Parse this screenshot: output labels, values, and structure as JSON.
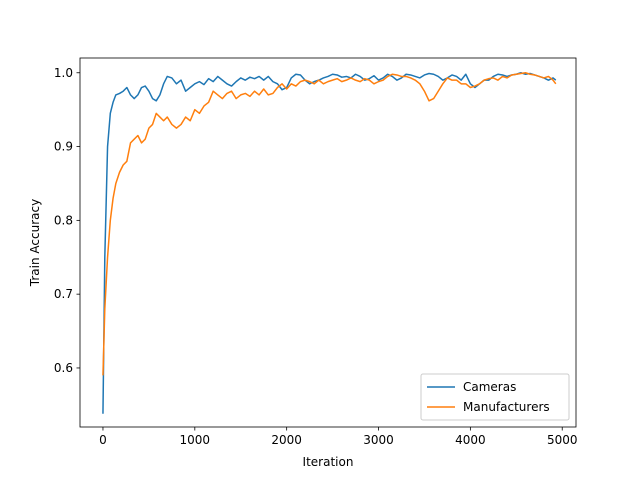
{
  "chart_data": {
    "type": "line",
    "title": "",
    "xlabel": "Iteration",
    "ylabel": "Train Accuracy",
    "xlim": [
      -250,
      5150
    ],
    "ylim": [
      0.52,
      1.02
    ],
    "xticks": [
      0,
      1000,
      2000,
      3000,
      4000,
      5000
    ],
    "xtick_labels": [
      "0",
      "1000",
      "2000",
      "3000",
      "4000",
      "5000"
    ],
    "yticks": [
      0.6,
      0.7,
      0.8,
      0.9,
      1.0
    ],
    "ytick_labels": [
      "0.6",
      "0.7",
      "0.8",
      "0.9",
      "1.0"
    ],
    "grid": false,
    "legend_position": "lower-right",
    "series": [
      {
        "name": "Cameras",
        "color": "#1f77b4",
        "x": [
          0,
          20,
          50,
          80,
          110,
          140,
          180,
          220,
          260,
          300,
          340,
          380,
          420,
          460,
          500,
          540,
          580,
          620,
          660,
          700,
          750,
          800,
          850,
          900,
          950,
          1000,
          1050,
          1100,
          1150,
          1200,
          1250,
          1300,
          1350,
          1400,
          1450,
          1500,
          1550,
          1600,
          1650,
          1700,
          1750,
          1800,
          1850,
          1900,
          1950,
          2000,
          2050,
          2100,
          2150,
          2200,
          2250,
          2300,
          2350,
          2400,
          2450,
          2500,
          2550,
          2600,
          2650,
          2700,
          2750,
          2800,
          2850,
          2900,
          2950,
          3000,
          3050,
          3100,
          3150,
          3200,
          3250,
          3300,
          3350,
          3400,
          3450,
          3500,
          3550,
          3600,
          3650,
          3700,
          3750,
          3800,
          3850,
          3900,
          3950,
          4000,
          4050,
          4100,
          4150,
          4200,
          4250,
          4300,
          4350,
          4400,
          4450,
          4500,
          4550,
          4600,
          4650,
          4700,
          4750,
          4800,
          4850,
          4900,
          4930
        ],
        "values": [
          0.538,
          0.75,
          0.9,
          0.945,
          0.96,
          0.97,
          0.972,
          0.975,
          0.98,
          0.97,
          0.965,
          0.97,
          0.98,
          0.982,
          0.975,
          0.965,
          0.962,
          0.97,
          0.985,
          0.995,
          0.993,
          0.985,
          0.99,
          0.975,
          0.98,
          0.985,
          0.988,
          0.984,
          0.992,
          0.988,
          0.995,
          0.99,
          0.985,
          0.982,
          0.988,
          0.993,
          0.99,
          0.994,
          0.992,
          0.995,
          0.99,
          0.995,
          0.988,
          0.985,
          0.977,
          0.98,
          0.993,
          0.998,
          0.997,
          0.99,
          0.985,
          0.988,
          0.99,
          0.993,
          0.995,
          0.998,
          0.997,
          0.994,
          0.995,
          0.993,
          0.998,
          0.995,
          0.99,
          0.992,
          0.996,
          0.99,
          0.993,
          0.998,
          0.995,
          0.99,
          0.993,
          0.998,
          0.997,
          0.995,
          0.993,
          0.997,
          0.999,
          0.998,
          0.995,
          0.99,
          0.993,
          0.997,
          0.995,
          0.99,
          0.998,
          0.985,
          0.98,
          0.985,
          0.99,
          0.99,
          0.995,
          0.998,
          0.997,
          0.995,
          0.997,
          0.998,
          1.0,
          0.998,
          0.999,
          0.997,
          0.995,
          0.993,
          0.99,
          0.993,
          0.99
        ]
      },
      {
        "name": "Manufacturers",
        "color": "#ff7f0e",
        "x": [
          0,
          20,
          50,
          80,
          110,
          140,
          180,
          220,
          260,
          300,
          340,
          380,
          420,
          460,
          500,
          540,
          580,
          620,
          660,
          700,
          750,
          800,
          850,
          900,
          950,
          1000,
          1050,
          1100,
          1150,
          1200,
          1250,
          1300,
          1350,
          1400,
          1450,
          1500,
          1550,
          1600,
          1650,
          1700,
          1750,
          1800,
          1850,
          1900,
          1950,
          2000,
          2050,
          2100,
          2150,
          2200,
          2250,
          2300,
          2350,
          2400,
          2450,
          2500,
          2550,
          2600,
          2650,
          2700,
          2750,
          2800,
          2850,
          2900,
          2950,
          3000,
          3050,
          3100,
          3150,
          3200,
          3250,
          3300,
          3350,
          3400,
          3450,
          3500,
          3550,
          3600,
          3650,
          3700,
          3750,
          3800,
          3850,
          3900,
          3950,
          4000,
          4050,
          4100,
          4150,
          4200,
          4250,
          4300,
          4350,
          4400,
          4450,
          4500,
          4550,
          4600,
          4650,
          4700,
          4750,
          4800,
          4850,
          4900,
          4930
        ],
        "values": [
          0.59,
          0.68,
          0.75,
          0.8,
          0.83,
          0.85,
          0.865,
          0.875,
          0.88,
          0.905,
          0.91,
          0.915,
          0.905,
          0.91,
          0.925,
          0.93,
          0.945,
          0.94,
          0.935,
          0.94,
          0.93,
          0.925,
          0.93,
          0.94,
          0.935,
          0.95,
          0.945,
          0.955,
          0.96,
          0.975,
          0.97,
          0.965,
          0.972,
          0.975,
          0.965,
          0.97,
          0.972,
          0.968,
          0.975,
          0.97,
          0.978,
          0.97,
          0.972,
          0.98,
          0.985,
          0.978,
          0.985,
          0.982,
          0.988,
          0.99,
          0.988,
          0.985,
          0.99,
          0.985,
          0.988,
          0.99,
          0.992,
          0.988,
          0.99,
          0.993,
          0.99,
          0.988,
          0.992,
          0.99,
          0.985,
          0.988,
          0.99,
          0.995,
          0.998,
          0.997,
          0.995,
          0.995,
          0.993,
          0.99,
          0.985,
          0.975,
          0.962,
          0.965,
          0.975,
          0.985,
          0.993,
          0.99,
          0.99,
          0.985,
          0.985,
          0.98,
          0.982,
          0.985,
          0.99,
          0.992,
          0.993,
          0.99,
          0.995,
          0.993,
          0.997,
          0.998,
          0.999,
          1.0,
          0.998,
          0.997,
          0.995,
          0.993,
          0.995,
          0.99,
          0.985
        ]
      }
    ]
  }
}
